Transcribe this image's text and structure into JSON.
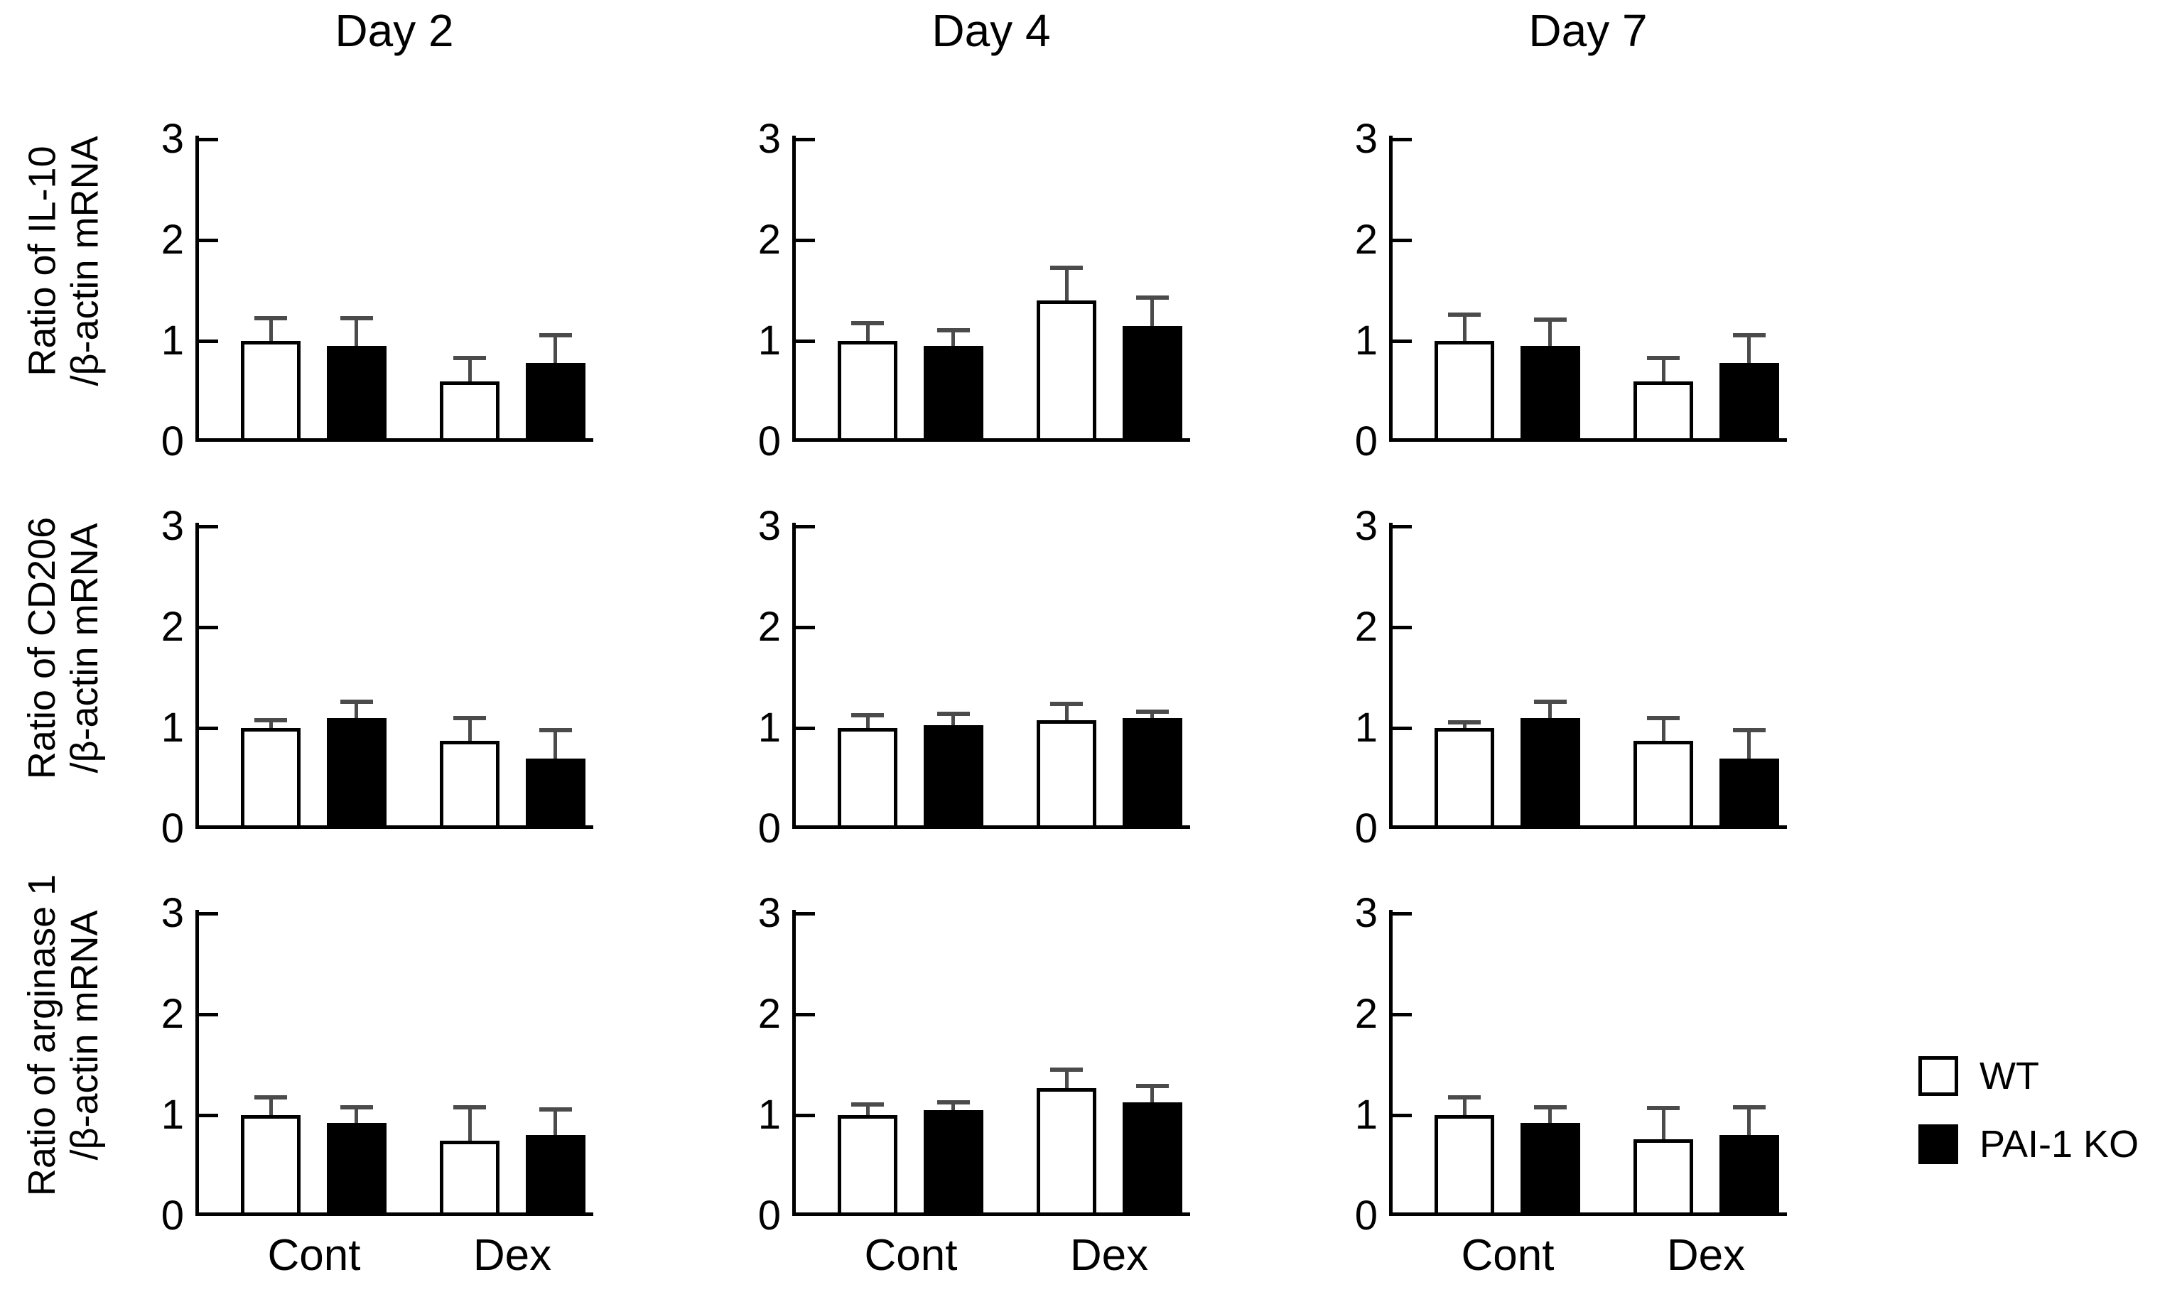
{
  "figure": {
    "columns": [
      "Day 2",
      "Day 4",
      "Day 7"
    ],
    "rows": [
      {
        "ylabel_line1": "Ratio of IL-10",
        "ylabel_line2": "/β-actin mRNA"
      },
      {
        "ylabel_line1": "Ratio of CD206",
        "ylabel_line2": "/β-actin mRNA"
      },
      {
        "ylabel_line1": "Ratio of arginase 1",
        "ylabel_line2": "/β-actin mRNA"
      }
    ],
    "x_categories": [
      "Cont",
      "Dex"
    ],
    "y_ticks": [
      0,
      1,
      2,
      3
    ],
    "y_max": 3,
    "legend": [
      {
        "label": "WT",
        "fill": "#ffffff"
      },
      {
        "label": "PAI-1 KO",
        "fill": "#000000"
      }
    ],
    "colors": {
      "axis": "#000000",
      "error_bar": "#4b4b4b",
      "bar_white": "#ffffff",
      "bar_black": "#000000",
      "background": "#ffffff"
    }
  },
  "chart_data": [
    {
      "type": "bar",
      "row": "IL-10",
      "col": "Day 2",
      "title": "Day 2",
      "ylabel": "Ratio of IL-10 /β-actin mRNA",
      "ylim": [
        0,
        3
      ],
      "categories": [
        "Cont",
        "Dex"
      ],
      "series": [
        {
          "name": "WT",
          "fill": "#ffffff",
          "values": [
            1.0,
            0.6
          ],
          "errors": [
            0.25,
            0.25
          ]
        },
        {
          "name": "PAI-1 KO",
          "fill": "#000000",
          "values": [
            0.95,
            0.78
          ],
          "errors": [
            0.3,
            0.3
          ]
        }
      ]
    },
    {
      "type": "bar",
      "row": "IL-10",
      "col": "Day 4",
      "title": "Day 4",
      "ylabel": "Ratio of IL-10 /β-actin mRNA",
      "ylim": [
        0,
        3
      ],
      "categories": [
        "Cont",
        "Dex"
      ],
      "series": [
        {
          "name": "WT",
          "fill": "#ffffff",
          "values": [
            1.0,
            1.4
          ],
          "errors": [
            0.2,
            0.35
          ]
        },
        {
          "name": "PAI-1 KO",
          "fill": "#000000",
          "values": [
            0.95,
            1.15
          ],
          "errors": [
            0.18,
            0.3
          ]
        }
      ]
    },
    {
      "type": "bar",
      "row": "IL-10",
      "col": "Day 7",
      "title": "Day 7",
      "ylabel": "Ratio of IL-10 /β-actin mRNA",
      "ylim": [
        0,
        3
      ],
      "categories": [
        "Cont",
        "Dex"
      ],
      "series": [
        {
          "name": "WT",
          "fill": "#ffffff",
          "values": [
            1.0,
            0.6
          ],
          "errors": [
            0.28,
            0.25
          ]
        },
        {
          "name": "PAI-1 KO",
          "fill": "#000000",
          "values": [
            0.95,
            0.78
          ],
          "errors": [
            0.28,
            0.3
          ]
        }
      ]
    },
    {
      "type": "bar",
      "row": "CD206",
      "col": "Day 2",
      "title": "Day 2",
      "ylabel": "Ratio of CD206 /β-actin mRNA",
      "ylim": [
        0,
        3
      ],
      "categories": [
        "Cont",
        "Dex"
      ],
      "series": [
        {
          "name": "WT",
          "fill": "#ffffff",
          "values": [
            1.0,
            0.87
          ],
          "errors": [
            0.1,
            0.25
          ]
        },
        {
          "name": "PAI-1 KO",
          "fill": "#000000",
          "values": [
            1.1,
            0.7
          ],
          "errors": [
            0.18,
            0.3
          ]
        }
      ]
    },
    {
      "type": "bar",
      "row": "CD206",
      "col": "Day 4",
      "title": "Day 4",
      "ylabel": "Ratio of CD206 /β-actin mRNA",
      "ylim": [
        0,
        3
      ],
      "categories": [
        "Cont",
        "Dex"
      ],
      "series": [
        {
          "name": "WT",
          "fill": "#ffffff",
          "values": [
            1.0,
            1.08
          ],
          "errors": [
            0.15,
            0.18
          ]
        },
        {
          "name": "PAI-1 KO",
          "fill": "#000000",
          "values": [
            1.03,
            1.1
          ],
          "errors": [
            0.13,
            0.08
          ]
        }
      ]
    },
    {
      "type": "bar",
      "row": "CD206",
      "col": "Day 7",
      "title": "Day 7",
      "ylabel": "Ratio of CD206 /β-actin mRNA",
      "ylim": [
        0,
        3
      ],
      "categories": [
        "Cont",
        "Dex"
      ],
      "series": [
        {
          "name": "WT",
          "fill": "#ffffff",
          "values": [
            1.0,
            0.87
          ],
          "errors": [
            0.08,
            0.25
          ]
        },
        {
          "name": "PAI-1 KO",
          "fill": "#000000",
          "values": [
            1.1,
            0.7
          ],
          "errors": [
            0.18,
            0.3
          ]
        }
      ]
    },
    {
      "type": "bar",
      "row": "arginase 1",
      "col": "Day 2",
      "title": "Day 2",
      "ylabel": "Ratio of arginase 1 /β-actin mRNA",
      "ylim": [
        0,
        3
      ],
      "categories": [
        "Cont",
        "Dex"
      ],
      "series": [
        {
          "name": "WT",
          "fill": "#ffffff",
          "values": [
            1.0,
            0.75
          ],
          "errors": [
            0.2,
            0.35
          ]
        },
        {
          "name": "PAI-1 KO",
          "fill": "#000000",
          "values": [
            0.92,
            0.8
          ],
          "errors": [
            0.18,
            0.28
          ]
        }
      ]
    },
    {
      "type": "bar",
      "row": "arginase 1",
      "col": "Day 4",
      "title": "Day 4",
      "ylabel": "Ratio of arginase 1 /β-actin mRNA",
      "ylim": [
        0,
        3
      ],
      "categories": [
        "Cont",
        "Dex"
      ],
      "series": [
        {
          "name": "WT",
          "fill": "#ffffff",
          "values": [
            1.0,
            1.27
          ],
          "errors": [
            0.13,
            0.2
          ]
        },
        {
          "name": "PAI-1 KO",
          "fill": "#000000",
          "values": [
            1.05,
            1.13
          ],
          "errors": [
            0.1,
            0.18
          ]
        }
      ]
    },
    {
      "type": "bar",
      "row": "arginase 1",
      "col": "Day 7",
      "title": "Day 7",
      "ylabel": "Ratio of arginase 1 /β-actin mRNA",
      "ylim": [
        0,
        3
      ],
      "categories": [
        "Cont",
        "Dex"
      ],
      "series": [
        {
          "name": "WT",
          "fill": "#ffffff",
          "values": [
            1.0,
            0.76
          ],
          "errors": [
            0.2,
            0.33
          ]
        },
        {
          "name": "PAI-1 KO",
          "fill": "#000000",
          "values": [
            0.92,
            0.8
          ],
          "errors": [
            0.18,
            0.3
          ]
        }
      ]
    }
  ]
}
